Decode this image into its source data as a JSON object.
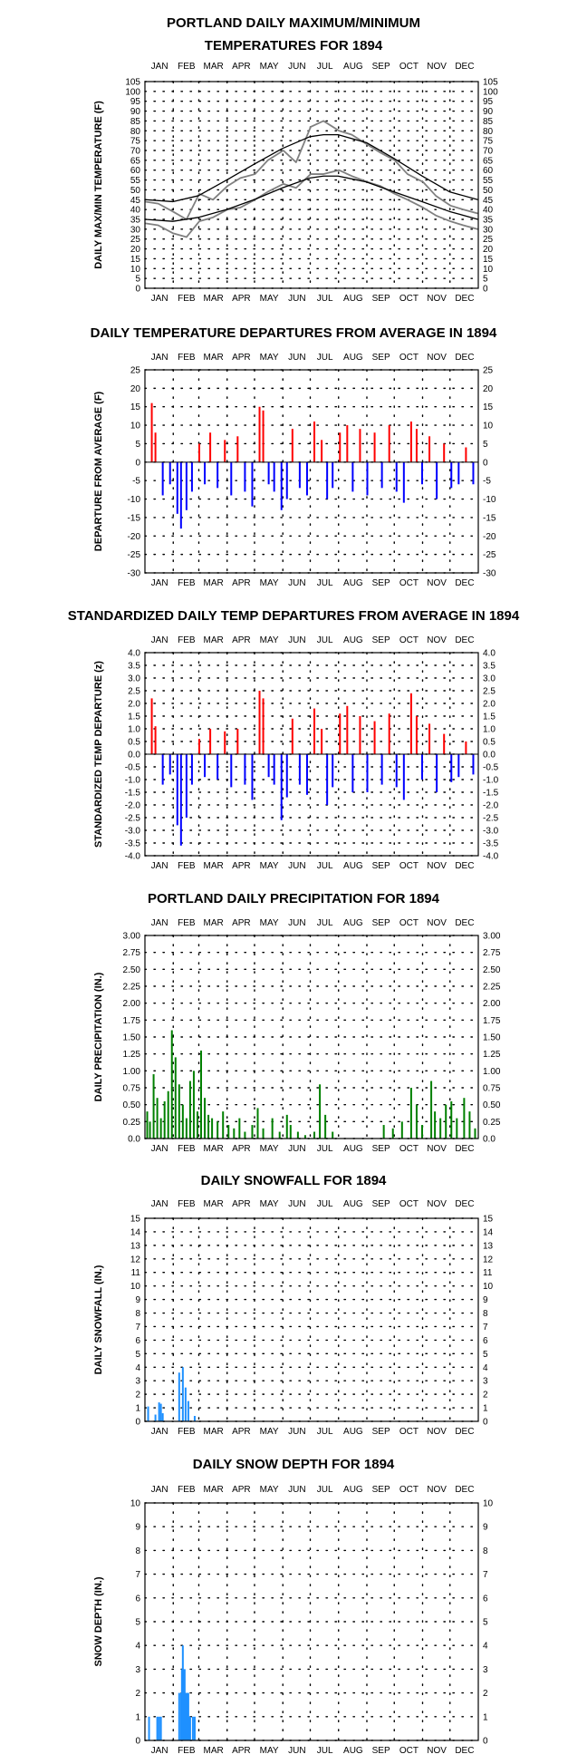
{
  "months": [
    "JAN",
    "FEB",
    "MAR",
    "APR",
    "MAY",
    "JUN",
    "JUL",
    "AUG",
    "SEP",
    "OCT",
    "NOV",
    "DEC"
  ],
  "colors": {
    "maxmin_raw": "#808080",
    "normal_line": "#000000",
    "positive": "#ff0000",
    "negative": "#0000ff",
    "precip": "#008000",
    "snow": "#1e90ff"
  },
  "chart_data": [
    {
      "id": "maxmin",
      "type": "line",
      "title": "PORTLAND DAILY MAXIMUM/MINIMUM TEMPERATURES FOR 1894",
      "title_lines": [
        "PORTLAND DAILY MAXIMUM/MINIMUM",
        "TEMPERATURES FOR 1894"
      ],
      "ylabel": "DAILY MAX/MIN TEMPERATURE (F)",
      "ylim": [
        0,
        105
      ],
      "yticks": [
        0,
        5,
        10,
        15,
        20,
        25,
        30,
        35,
        40,
        45,
        50,
        55,
        60,
        65,
        70,
        75,
        80,
        85,
        90,
        95,
        100,
        105
      ],
      "x_unit": "day of year",
      "grid": "dotted",
      "series": [
        {
          "values": [
            [
              1,
              44
            ],
            [
              15,
              43
            ],
            [
              31,
              39
            ],
            [
              46,
              35
            ],
            [
              60,
              48
            ],
            [
              75,
              45
            ],
            [
              91,
              52
            ],
            [
              105,
              56
            ],
            [
              121,
              58
            ],
            [
              135,
              65
            ],
            [
              152,
              70
            ],
            [
              166,
              64
            ],
            [
              182,
              82
            ],
            [
              196,
              85
            ],
            [
              213,
              80
            ],
            [
              227,
              78
            ],
            [
              244,
              73
            ],
            [
              258,
              69
            ],
            [
              274,
              65
            ],
            [
              288,
              58
            ],
            [
              305,
              54
            ],
            [
              319,
              47
            ],
            [
              335,
              42
            ],
            [
              349,
              40
            ],
            [
              365,
              38
            ]
          ]
        },
        {
          "values": [
            [
              1,
              33
            ],
            [
              15,
              32
            ],
            [
              31,
              28
            ],
            [
              46,
              26
            ],
            [
              60,
              34
            ],
            [
              75,
              36
            ],
            [
              91,
              40
            ],
            [
              105,
              41
            ],
            [
              121,
              45
            ],
            [
              135,
              49
            ],
            [
              152,
              53
            ],
            [
              166,
              51
            ],
            [
              182,
              58
            ],
            [
              196,
              58
            ],
            [
              213,
              60
            ],
            [
              227,
              57
            ],
            [
              244,
              54
            ],
            [
              258,
              52
            ],
            [
              274,
              48
            ],
            [
              288,
              45
            ],
            [
              305,
              41
            ],
            [
              319,
              37
            ],
            [
              335,
              34
            ],
            [
              349,
              32
            ],
            [
              365,
              30
            ]
          ]
        },
        {
          "values": [
            [
              1,
              45
            ],
            [
              31,
              44
            ],
            [
              59,
              47
            ],
            [
              90,
              55
            ],
            [
              120,
              63
            ],
            [
              151,
              71
            ],
            [
              181,
              77
            ],
            [
              196,
              78
            ],
            [
              212,
              78
            ],
            [
              243,
              74
            ],
            [
              273,
              66
            ],
            [
              304,
              57
            ],
            [
              334,
              49
            ],
            [
              365,
              45
            ]
          ]
        },
        {
          "values": [
            [
              1,
              35
            ],
            [
              31,
              34
            ],
            [
              59,
              36
            ],
            [
              90,
              40
            ],
            [
              120,
              45
            ],
            [
              151,
              51
            ],
            [
              181,
              56
            ],
            [
              196,
              57
            ],
            [
              212,
              57
            ],
            [
              243,
              54
            ],
            [
              273,
              49
            ],
            [
              304,
              44
            ],
            [
              334,
              39
            ],
            [
              365,
              35
            ]
          ]
        }
      ]
    },
    {
      "id": "departure",
      "type": "bar",
      "title": "DAILY TEMPERATURE DEPARTURES FROM AVERAGE IN 1894",
      "ylabel": "DEPARTURE FROM AVERAGE (F)",
      "ylim": [
        -30,
        25
      ],
      "yticks": [
        25,
        20,
        15,
        10,
        5,
        0,
        -5,
        -10,
        -15,
        -20,
        -25,
        -30
      ],
      "x_unit": "day of year",
      "grid": "dotted",
      "values": [
        [
          8,
          16
        ],
        [
          12,
          8
        ],
        [
          20,
          -9
        ],
        [
          28,
          -6
        ],
        [
          36,
          -14
        ],
        [
          40,
          -18
        ],
        [
          46,
          -13
        ],
        [
          52,
          -8
        ],
        [
          60,
          5
        ],
        [
          66,
          -6
        ],
        [
          72,
          8
        ],
        [
          80,
          -7
        ],
        [
          88,
          6
        ],
        [
          95,
          -9
        ],
        [
          102,
          7
        ],
        [
          110,
          -8
        ],
        [
          118,
          -12
        ],
        [
          126,
          15
        ],
        [
          130,
          14
        ],
        [
          136,
          -6
        ],
        [
          142,
          -8
        ],
        [
          150,
          -13
        ],
        [
          156,
          -10
        ],
        [
          162,
          9
        ],
        [
          170,
          -7
        ],
        [
          178,
          -9
        ],
        [
          186,
          11
        ],
        [
          194,
          6
        ],
        [
          200,
          -10
        ],
        [
          206,
          -7
        ],
        [
          214,
          8
        ],
        [
          222,
          10
        ],
        [
          228,
          -8
        ],
        [
          236,
          9
        ],
        [
          244,
          -9
        ],
        [
          252,
          8
        ],
        [
          260,
          -7
        ],
        [
          268,
          10
        ],
        [
          276,
          -8
        ],
        [
          284,
          -11
        ],
        [
          292,
          11
        ],
        [
          298,
          9
        ],
        [
          304,
          -6
        ],
        [
          312,
          7
        ],
        [
          320,
          -10
        ],
        [
          328,
          5
        ],
        [
          336,
          -7
        ],
        [
          344,
          -6
        ],
        [
          352,
          4
        ],
        [
          360,
          -6
        ]
      ]
    },
    {
      "id": "standardized",
      "type": "bar",
      "title": "STANDARDIZED DAILY TEMP DEPARTURES FROM AVERAGE IN 1894",
      "ylabel": "STANDARDIZED TEMP DEPARTURE (z)",
      "ylim": [
        -4,
        4
      ],
      "yticks": [
        4.0,
        3.5,
        3.0,
        2.5,
        2.0,
        1.5,
        1.0,
        0.5,
        0.0,
        -0.5,
        -1.0,
        -1.5,
        -2.0,
        -2.5,
        -3.0,
        -3.5,
        -4.0
      ],
      "x_unit": "day of year",
      "grid": "dotted",
      "values": [
        [
          8,
          2.2
        ],
        [
          12,
          1.1
        ],
        [
          20,
          -1.2
        ],
        [
          28,
          -0.8
        ],
        [
          36,
          -2.8
        ],
        [
          40,
          -3.6
        ],
        [
          46,
          -2.5
        ],
        [
          52,
          -1.2
        ],
        [
          60,
          0.6
        ],
        [
          66,
          -0.9
        ],
        [
          72,
          1.0
        ],
        [
          80,
          -1.0
        ],
        [
          88,
          0.9
        ],
        [
          95,
          -1.3
        ],
        [
          102,
          1.0
        ],
        [
          110,
          -1.2
        ],
        [
          118,
          -1.8
        ],
        [
          126,
          2.5
        ],
        [
          130,
          2.2
        ],
        [
          136,
          -0.9
        ],
        [
          142,
          -1.2
        ],
        [
          150,
          -2.6
        ],
        [
          156,
          -1.7
        ],
        [
          162,
          1.4
        ],
        [
          170,
          -1.2
        ],
        [
          178,
          -1.6
        ],
        [
          186,
          1.8
        ],
        [
          194,
          1.0
        ],
        [
          200,
          -2.0
        ],
        [
          206,
          -1.3
        ],
        [
          214,
          1.6
        ],
        [
          222,
          1.9
        ],
        [
          228,
          -1.5
        ],
        [
          236,
          1.5
        ],
        [
          244,
          -1.5
        ],
        [
          252,
          1.3
        ],
        [
          260,
          -1.2
        ],
        [
          268,
          1.6
        ],
        [
          276,
          -1.3
        ],
        [
          284,
          -1.8
        ],
        [
          292,
          2.4
        ],
        [
          298,
          1.5
        ],
        [
          304,
          -1.0
        ],
        [
          312,
          1.2
        ],
        [
          320,
          -1.5
        ],
        [
          328,
          0.8
        ],
        [
          336,
          -1.1
        ],
        [
          344,
          -0.9
        ],
        [
          352,
          0.5
        ],
        [
          360,
          -0.8
        ]
      ]
    },
    {
      "id": "precip",
      "type": "bar",
      "title": "PORTLAND DAILY PRECIPITATION FOR 1894",
      "ylabel": "DAILY PRECIPITATION (IN.)",
      "ylim": [
        0,
        3
      ],
      "yticks": [
        0.0,
        0.25,
        0.5,
        0.75,
        1.0,
        1.25,
        1.5,
        1.75,
        2.0,
        2.25,
        2.5,
        2.75,
        3.0
      ],
      "x_unit": "day of year",
      "grid": "dotted",
      "values": [
        [
          3,
          0.4
        ],
        [
          6,
          0.25
        ],
        [
          10,
          0.95
        ],
        [
          14,
          0.6
        ],
        [
          18,
          0.3
        ],
        [
          22,
          0.55
        ],
        [
          26,
          0.7
        ],
        [
          30,
          1.6
        ],
        [
          34,
          1.2
        ],
        [
          38,
          0.8
        ],
        [
          42,
          0.5
        ],
        [
          46,
          0.3
        ],
        [
          50,
          0.85
        ],
        [
          54,
          1.0
        ],
        [
          58,
          0.4
        ],
        [
          62,
          1.3
        ],
        [
          66,
          0.6
        ],
        [
          70,
          0.35
        ],
        [
          74,
          0.3
        ],
        [
          80,
          0.25
        ],
        [
          86,
          0.4
        ],
        [
          92,
          0.2
        ],
        [
          98,
          0.15
        ],
        [
          104,
          0.3
        ],
        [
          110,
          0.1
        ],
        [
          118,
          0.2
        ],
        [
          124,
          0.45
        ],
        [
          130,
          0.15
        ],
        [
          140,
          0.3
        ],
        [
          148,
          0.1
        ],
        [
          156,
          0.35
        ],
        [
          160,
          0.2
        ],
        [
          168,
          0.1
        ],
        [
          176,
          0.05
        ],
        [
          186,
          0.1
        ],
        [
          192,
          0.8
        ],
        [
          198,
          0.35
        ],
        [
          206,
          0.1
        ],
        [
          262,
          0.2
        ],
        [
          272,
          0.15
        ],
        [
          282,
          0.25
        ],
        [
          292,
          0.75
        ],
        [
          298,
          0.5
        ],
        [
          304,
          0.2
        ],
        [
          314,
          0.85
        ],
        [
          318,
          0.4
        ],
        [
          324,
          0.3
        ],
        [
          330,
          0.5
        ],
        [
          336,
          0.55
        ],
        [
          342,
          0.3
        ],
        [
          350,
          0.6
        ],
        [
          356,
          0.4
        ],
        [
          362,
          0.15
        ]
      ]
    },
    {
      "id": "snowfall",
      "type": "bar",
      "title": "DAILY SNOWFALL FOR 1894",
      "ylabel": "DAILY SNOWFALL (IN.)",
      "ylim": [
        0,
        15
      ],
      "yticks": [
        0,
        1,
        2,
        3,
        4,
        5,
        6,
        7,
        8,
        9,
        10,
        11,
        12,
        13,
        14,
        15
      ],
      "x_unit": "day of year",
      "grid": "dotted",
      "values": [
        [
          4,
          1.1
        ],
        [
          12,
          0.5
        ],
        [
          16,
          1.4
        ],
        [
          18,
          1.3
        ],
        [
          20,
          0.6
        ],
        [
          38,
          3.6
        ],
        [
          42,
          4.0
        ],
        [
          45,
          2.5
        ],
        [
          48,
          1.5
        ],
        [
          55,
          0.4
        ]
      ]
    },
    {
      "id": "snowdepth",
      "type": "bar",
      "title": "DAILY SNOW DEPTH FOR 1894",
      "ylabel": "SNOW DEPTH (IN.)",
      "ylim": [
        0,
        10
      ],
      "yticks": [
        0,
        1,
        2,
        3,
        4,
        5,
        6,
        7,
        8,
        9,
        10
      ],
      "x_unit": "day of year",
      "grid": "dotted",
      "values": [
        [
          5,
          1
        ],
        [
          14,
          1
        ],
        [
          16,
          1
        ],
        [
          18,
          1
        ],
        [
          38,
          2
        ],
        [
          40,
          2
        ],
        [
          41,
          3
        ],
        [
          42,
          4
        ],
        [
          43,
          3
        ],
        [
          44,
          3
        ],
        [
          45,
          2
        ],
        [
          46,
          2
        ],
        [
          47,
          2
        ],
        [
          48,
          2
        ],
        [
          49,
          1
        ],
        [
          50,
          1
        ],
        [
          53,
          1
        ],
        [
          55,
          1
        ]
      ]
    }
  ]
}
